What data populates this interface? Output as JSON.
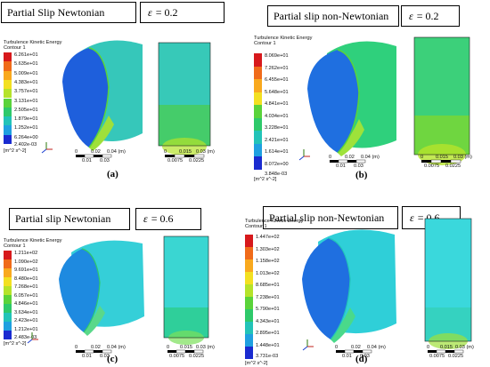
{
  "panels": [
    {
      "title": "Partial Slip Newtonian",
      "epsilon_symbol": "ε",
      "epsilon": "= 0.2",
      "caption": "(a)",
      "legend_title": "Turbulence Kinetic Energy",
      "legend_subtitle": "Contour 1",
      "legend_values": [
        "6.261e+01",
        "5.635e+01",
        "5.009e+01",
        "4.383e+01",
        "3.757e+01",
        "3.131e+01",
        "2.505e+01",
        "1.879e+01",
        "1.252e+01",
        "6.264e+00",
        "2.402e-03"
      ],
      "unit": "[m^2 s^-2]",
      "scale1_labels": [
        "0",
        "0.02",
        "0.04 (m)"
      ],
      "scale1_sub": [
        "0.01",
        "0.03"
      ],
      "scale2_labels": [
        "0",
        "0.015",
        "0.03 (m)"
      ],
      "scale2_sub": [
        "0.0075",
        "0.0225"
      ]
    },
    {
      "title": "Partial slip non-Newtonian",
      "epsilon_symbol": "ε",
      "epsilon": "= 0.2",
      "caption": "(b)",
      "legend_title": "Turbulence Kinetic Energy",
      "legend_subtitle": "Contour 1",
      "legend_values": [
        "8.069e+01",
        "7.262e+01",
        "6.455e+01",
        "5.648e+01",
        "4.841e+01",
        "4.034e+01",
        "3.228e+01",
        "2.421e+01",
        "1.614e+01",
        "8.072e+00",
        "3.848e-03"
      ],
      "unit": "[m^2 s^-2]",
      "scale1_labels": [
        "0",
        "0.02",
        "0.04 (m)"
      ],
      "scale1_sub": [
        "0.01",
        "0.03"
      ],
      "scale2_labels": [
        "0",
        "0.015",
        "0.03 (m)"
      ],
      "scale2_sub": [
        "0.0075",
        "0.0225"
      ]
    },
    {
      "title": "Partial slip Newtonian",
      "epsilon_symbol": "ε",
      "epsilon": "= 0.6",
      "caption": "(c)",
      "legend_title": "Turbulence Kinetic Energy",
      "legend_subtitle": "Contour 1",
      "legend_values": [
        "1.211e+02",
        "1.090e+02",
        "9.691e+01",
        "8.480e+01",
        "7.268e+01",
        "6.057e+01",
        "4.846e+01",
        "3.634e+01",
        "2.423e+01",
        "1.212e+01",
        "2.483e-03"
      ],
      "unit": "[m^2 s^-2]",
      "scale1_labels": [
        "0",
        "0.02",
        "0.04 (m)"
      ],
      "scale1_sub": [
        "0.01",
        "0.03"
      ],
      "scale2_labels": [
        "0",
        "0.015",
        "0.03 (m)"
      ],
      "scale2_sub": [
        "0.0075",
        "0.0225"
      ]
    },
    {
      "title": "Partial slip non-Newtonian",
      "epsilon_symbol": "ε",
      "epsilon": "= 0.6",
      "caption": "(d)",
      "legend_title": "Turbulence Kinetic Energy",
      "legend_subtitle": "Contour 1",
      "legend_values": [
        "1.447e+02",
        "1.303e+02",
        "1.158e+02",
        "1.013e+02",
        "8.685e+01",
        "7.238e+01",
        "5.790e+01",
        "4.343e+01",
        "2.895e+01",
        "1.448e+01",
        "3.731e-03"
      ],
      "unit": "[m^2 s^-2]",
      "scale1_labels": [
        "0",
        "0.02",
        "0.04 (m)"
      ],
      "scale1_sub": [
        "0.01",
        "0.03"
      ],
      "scale2_labels": [
        "0",
        "0.015",
        "0.03 (m)"
      ],
      "scale2_sub": [
        "0.0075",
        "0.0225"
      ]
    }
  ],
  "colormap": [
    "#d7191c",
    "#f06b1a",
    "#f9a91e",
    "#f3e021",
    "#b5e32a",
    "#5ad33a",
    "#2ec96a",
    "#22c3b8",
    "#1fa0e0",
    "#1f62d9",
    "#1a2bd0"
  ],
  "surface_colors": {
    "a": {
      "outer": "#36c7ba",
      "inner": "#1e5fdc",
      "rim": "#9fe03a",
      "rect_top": "#37c9b8",
      "rect_bottom": "#45cc6a"
    },
    "b": {
      "outer": "#2fd07c",
      "inner": "#1f6fe0",
      "rim": "#9ee23a",
      "rect_top": "#3cd07a",
      "rect_bottom": "#6fd640"
    },
    "c": {
      "outer": "#35cfd8",
      "inner": "#1e8ae0",
      "rim": "#5ad88a",
      "rect_top": "#3ad6d2",
      "rect_bottom": "#2fcf9a"
    },
    "d": {
      "outer": "#2fcfd8",
      "inner": "#1f6fe0",
      "rim": "#4ad98a",
      "rect_top": "#3ad8dc",
      "rect_bottom": "#35d2c0"
    }
  }
}
